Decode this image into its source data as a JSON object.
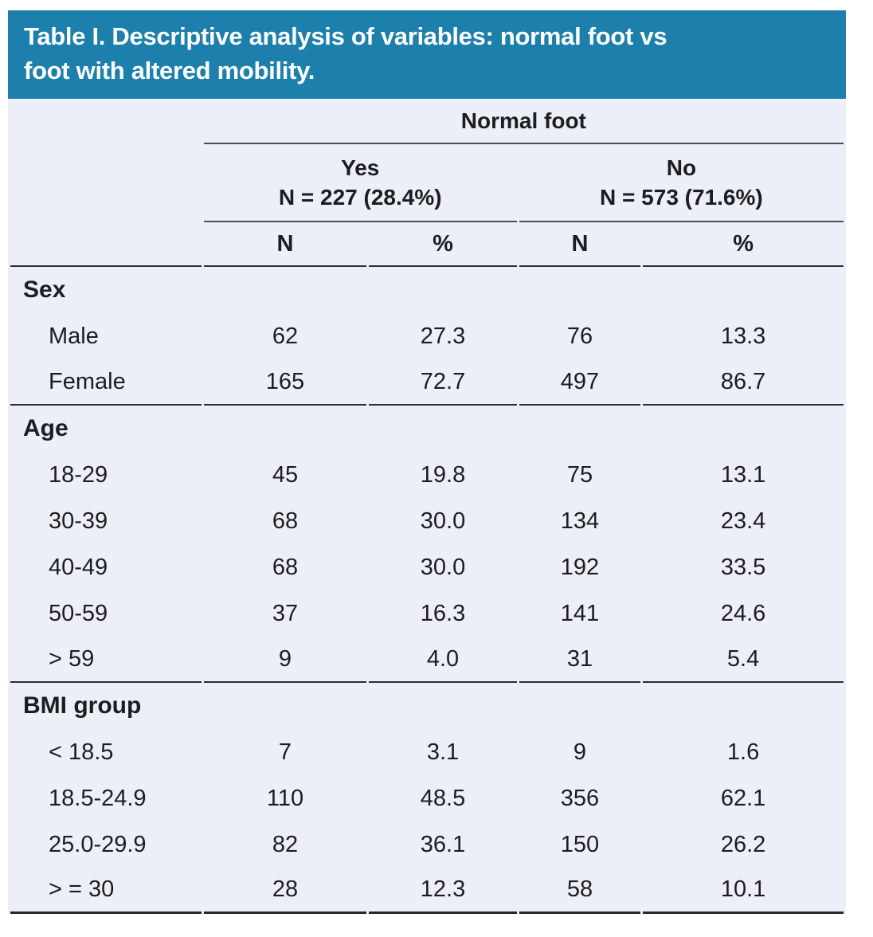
{
  "title": {
    "line1": "Table I. Descriptive analysis of variables: normal foot vs",
    "line2": "foot with altered mobility."
  },
  "colors": {
    "header-bg": "#1c7fac",
    "body-bg": "#eceff7",
    "text": "#1d1d1f",
    "line-gray": "#4f4f4f",
    "line-dark": "#2d2d2d",
    "line-bottom": "#282828"
  },
  "table": {
    "group_header": "Normal foot",
    "subgroups": [
      {
        "label": "Yes",
        "n_label": "N = 227 (28.4%)"
      },
      {
        "label": "No",
        "n_label": "N = 573 (71.6%)"
      }
    ],
    "col_headers": [
      "N",
      "%",
      "N",
      "%"
    ],
    "sections": [
      {
        "name": "Sex",
        "rows": [
          {
            "label": "Male",
            "values": [
              "62",
              "27.3",
              "76",
              "13.3"
            ]
          },
          {
            "label": "Female",
            "values": [
              "165",
              "72.7",
              "497",
              "86.7"
            ]
          }
        ]
      },
      {
        "name": "Age",
        "rows": [
          {
            "label": "18-29",
            "values": [
              "45",
              "19.8",
              "75",
              "13.1"
            ]
          },
          {
            "label": "30-39",
            "values": [
              "68",
              "30.0",
              "134",
              "23.4"
            ]
          },
          {
            "label": "40-49",
            "values": [
              "68",
              "30.0",
              "192",
              "33.5"
            ]
          },
          {
            "label": "50-59",
            "values": [
              "37",
              "16.3",
              "141",
              "24.6"
            ]
          },
          {
            "label": "> 59",
            "values": [
              "9",
              "4.0",
              "31",
              "5.4"
            ]
          }
        ]
      },
      {
        "name": "BMI group",
        "rows": [
          {
            "label": "< 18.5",
            "values": [
              "7",
              "3.1",
              "9",
              "1.6"
            ]
          },
          {
            "label": "18.5-24.9",
            "values": [
              "110",
              "48.5",
              "356",
              "62.1"
            ]
          },
          {
            "label": "25.0-29.9",
            "values": [
              "82",
              "36.1",
              "150",
              "26.2"
            ]
          },
          {
            "label": "> = 30",
            "values": [
              "28",
              "12.3",
              "58",
              "10.1"
            ]
          }
        ]
      }
    ]
  }
}
